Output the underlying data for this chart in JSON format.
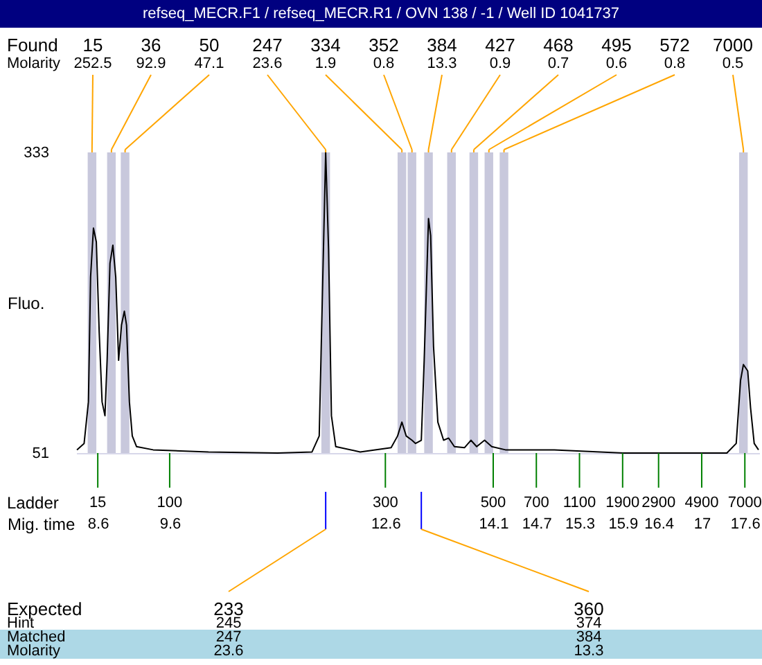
{
  "chart_data": {
    "type": "line",
    "title": "refseq_MECR.F1 / refseq_MECR.R1 / OVN 138 / -1 / Well ID 1041737",
    "ylabel": "Fluo.",
    "xlabel": "Mig. time",
    "xlim": [
      8.3,
      17.8
    ],
    "ylim": [
      51,
      333
    ],
    "yticks": [
      51,
      333
    ],
    "xticks": [
      8.6,
      9.6,
      12.6,
      14.1,
      14.7,
      15.3,
      15.9,
      16.4,
      17,
      17.6
    ],
    "x": [
      8.31,
      8.41,
      8.47,
      8.5,
      8.54,
      8.58,
      8.62,
      8.66,
      8.7,
      8.73,
      8.77,
      8.81,
      8.85,
      8.89,
      8.93,
      8.97,
      9.0,
      9.04,
      9.08,
      9.14,
      9.37,
      10.14,
      11.1,
      11.58,
      11.68,
      11.73,
      11.77,
      11.81,
      11.85,
      11.91,
      12.25,
      12.68,
      12.77,
      12.83,
      12.89,
      12.97,
      13.02,
      13.1,
      13.14,
      13.2,
      13.23,
      13.27,
      13.33,
      13.41,
      13.48,
      13.56,
      13.7,
      13.79,
      13.87,
      13.98,
      14.08,
      14.27,
      14.95,
      15.91,
      16.87,
      17.35,
      17.48,
      17.54,
      17.58,
      17.64,
      17.68,
      17.73,
      17.79
    ],
    "series": [
      {
        "color": "#000000",
        "values": [
          54,
          60,
          99,
          216,
          262,
          249,
          164,
          99,
          86,
          138,
          229,
          246,
          216,
          138,
          171,
          184,
          171,
          99,
          67,
          57,
          54,
          52,
          51,
          52,
          67,
          216,
          333,
          242,
          86,
          57,
          52,
          56,
          67,
          80,
          67,
          63,
          60,
          63,
          138,
          271,
          255,
          151,
          80,
          63,
          65,
          57,
          56,
          63,
          57,
          63,
          57,
          54,
          54,
          51,
          51,
          51,
          60,
          119,
          134,
          128,
          93,
          60,
          54
        ]
      }
    ],
    "bands": [
      {
        "axis": "x",
        "from": 8.46,
        "to": 8.58,
        "color": "#c8c8dc"
      },
      {
        "axis": "x",
        "from": 8.73,
        "to": 8.85,
        "color": "#c8c8dc"
      },
      {
        "axis": "x",
        "from": 8.92,
        "to": 9.04,
        "color": "#c8c8dc"
      },
      {
        "axis": "x",
        "from": 11.71,
        "to": 11.83,
        "color": "#c8c8dc"
      },
      {
        "axis": "x",
        "from": 12.77,
        "to": 12.89,
        "color": "#c8c8dc"
      },
      {
        "axis": "x",
        "from": 12.91,
        "to": 13.03,
        "color": "#c8c8dc"
      },
      {
        "axis": "x",
        "from": 13.14,
        "to": 13.26,
        "color": "#c8c8dc"
      },
      {
        "axis": "x",
        "from": 13.46,
        "to": 13.58,
        "color": "#c8c8dc"
      },
      {
        "axis": "x",
        "from": 13.77,
        "to": 13.89,
        "color": "#c8c8dc"
      },
      {
        "axis": "x",
        "from": 13.98,
        "to": 14.1,
        "color": "#c8c8dc"
      },
      {
        "axis": "x",
        "from": 14.19,
        "to": 14.31,
        "color": "#c8c8dc"
      },
      {
        "axis": "x",
        "from": 17.52,
        "to": 17.64,
        "color": "#c8c8dc"
      }
    ],
    "annotations": [
      "Found",
      "Molarity",
      {
        "text": "15",
        "x": 8.52
      },
      "252.5",
      {
        "text": "36",
        "x": 8.79
      },
      "92.9",
      {
        "text": "50",
        "x": 8.98
      },
      "47.1",
      {
        "text": "247",
        "x": 11.77
      },
      "23.6",
      {
        "text": "334",
        "x": 12.83
      },
      "1.9",
      {
        "text": "352",
        "x": 12.97
      },
      "0.8",
      {
        "text": "384",
        "x": 13.2
      },
      "13.3",
      {
        "text": "427",
        "x": 13.52
      },
      "0.9",
      {
        "text": "468",
        "x": 13.83
      },
      "0.7",
      {
        "text": "495",
        "x": 14.04
      },
      "0.6",
      {
        "text": "572",
        "x": 14.25
      },
      "0.8",
      {
        "text": "7000",
        "x": 17.58
      },
      "0.5",
      "Ladder",
      "15",
      "100",
      "300",
      "500",
      "700",
      "1100",
      "1900",
      "2900",
      "4900",
      "7000",
      "Expected",
      {
        "text": "233",
        "x": 11.77
      },
      {
        "text": "360",
        "x": 13.1
      },
      "Hint",
      "245",
      "374",
      "Matched",
      "247",
      "384",
      "Molarity",
      "23.6",
      "13.3"
    ]
  }
}
